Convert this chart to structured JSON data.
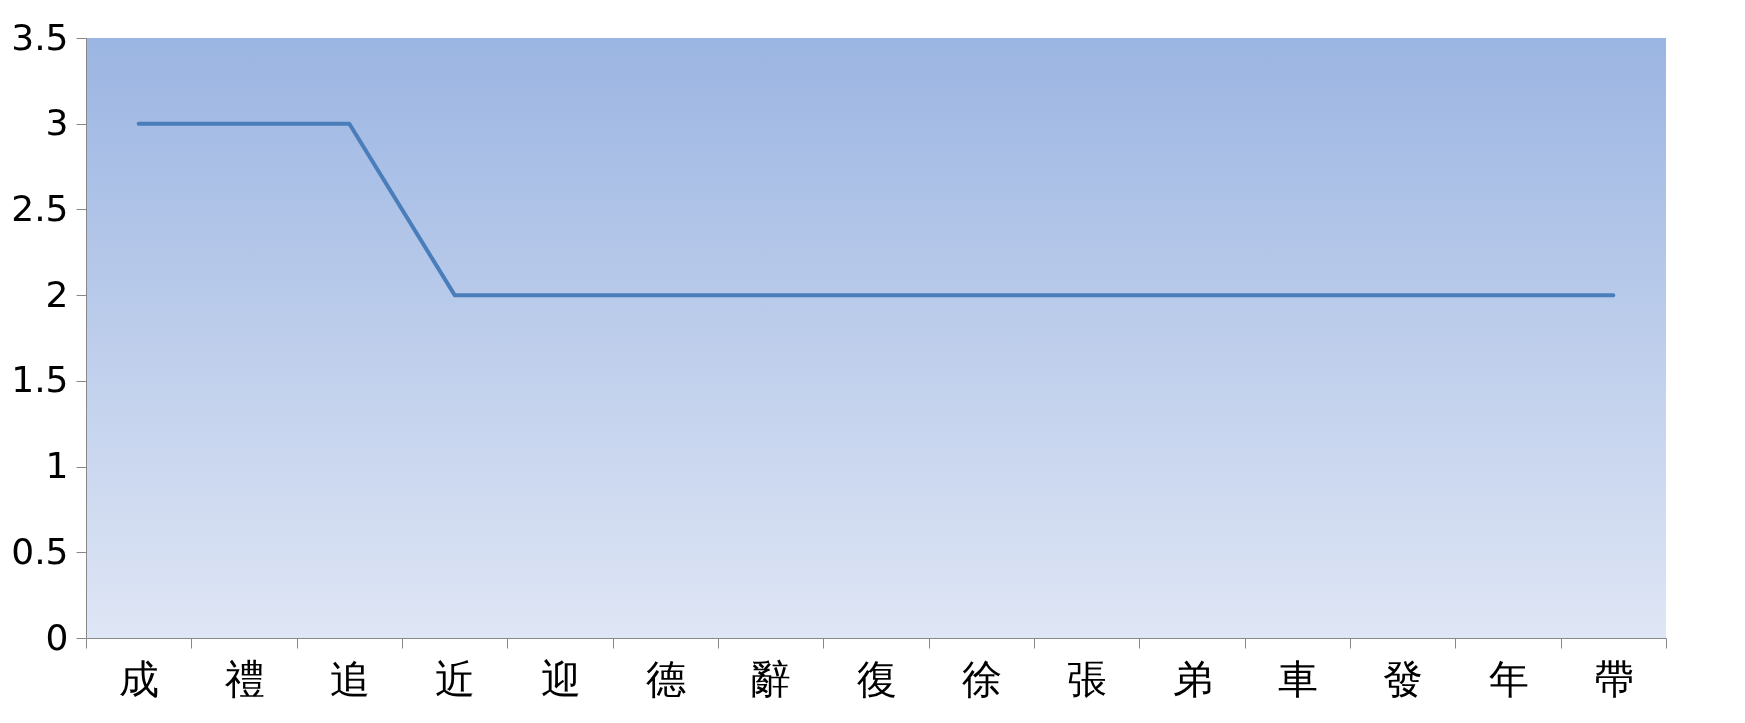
{
  "chart_data": {
    "type": "line",
    "categories": [
      "成",
      "禮",
      "追",
      "近",
      "迎",
      "德",
      "辭",
      "復",
      "徐",
      "張",
      "弟",
      "車",
      "發",
      "年",
      "帶"
    ],
    "series": [
      {
        "color": "#4a7ebb",
        "values": [
          3,
          3,
          3,
          2,
          2,
          2,
          2,
          2,
          2,
          2,
          2,
          2,
          2,
          2,
          2
        ]
      }
    ],
    "ylim": [
      0,
      3.5
    ],
    "yticks": [
      0,
      0.5,
      1,
      1.5,
      2,
      2.5,
      3,
      3.5
    ],
    "grid": false,
    "legend": false,
    "marker": "none",
    "line_style": "solid"
  }
}
